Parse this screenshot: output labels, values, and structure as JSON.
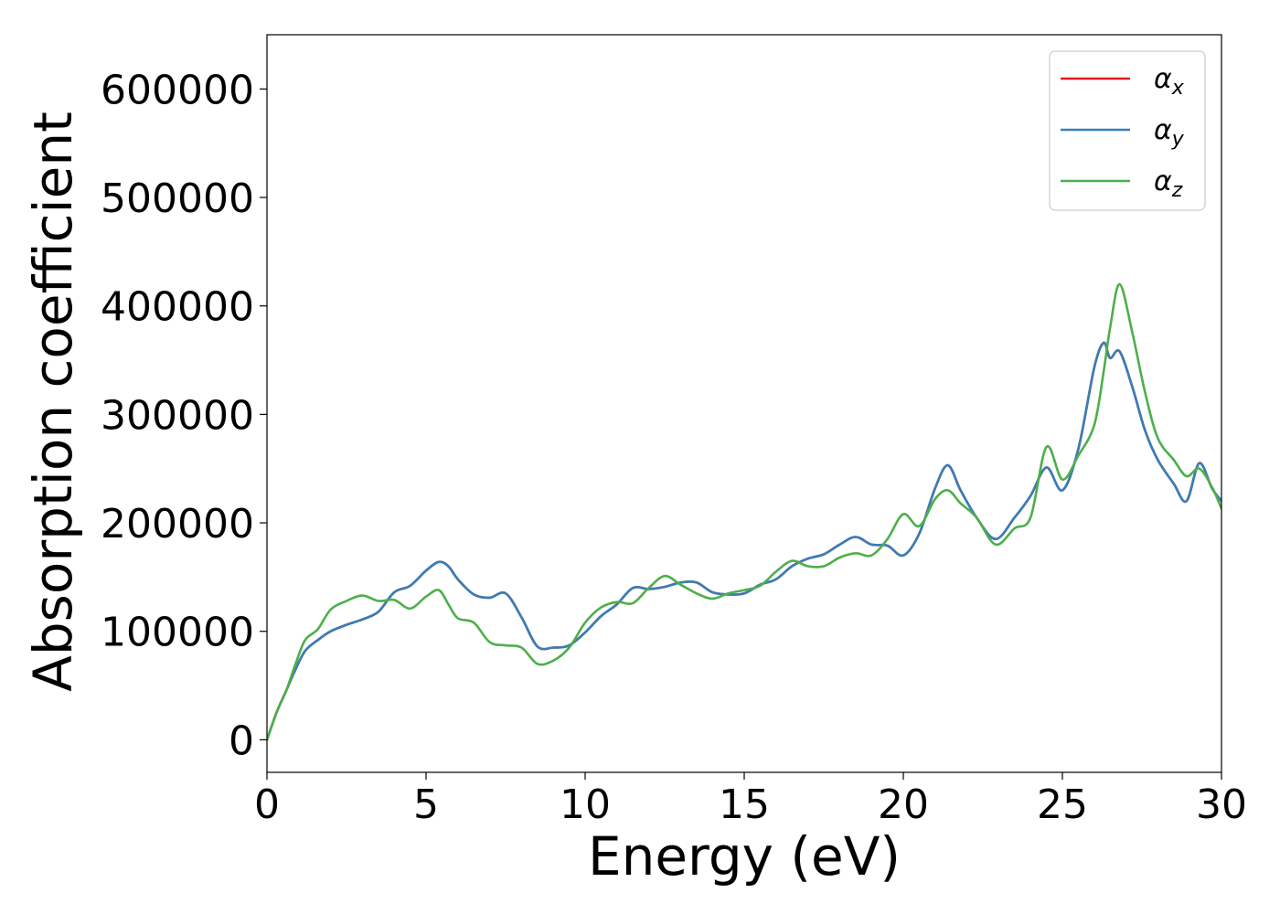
{
  "chart_data": {
    "type": "line",
    "title": "",
    "xlabel": "Energy (eV)",
    "ylabel": "Absorption coefficient",
    "xlim": [
      0,
      30
    ],
    "ylim": [
      -30000,
      650000
    ],
    "xticks": [
      0,
      5,
      10,
      15,
      20,
      25,
      30
    ],
    "yticks": [
      0,
      100000,
      200000,
      300000,
      400000,
      500000,
      600000
    ],
    "grid": false,
    "legend_position": "top-right",
    "series": [
      {
        "name": "α",
        "subscript": "x",
        "color": "#e41a1c",
        "x": [
          0,
          0.3,
          0.6,
          0.9,
          1.2,
          1.6,
          2.0,
          2.5,
          3.0,
          3.5,
          4.0,
          4.5,
          5.0,
          5.4,
          5.7,
          6.0,
          6.5,
          7.0,
          7.5,
          8.0,
          8.5,
          9.0,
          9.5,
          10.0,
          10.5,
          11.0,
          11.5,
          12.0,
          12.5,
          13.0,
          13.5,
          14.0,
          14.5,
          15.0,
          15.5,
          16.0,
          16.5,
          17.0,
          17.5,
          18.0,
          18.5,
          19.0,
          19.5,
          20.0,
          20.5,
          21.0,
          21.4,
          21.8,
          22.3,
          22.9,
          23.5,
          24.0,
          24.5,
          25.0,
          25.5,
          26.0,
          26.3,
          26.5,
          26.8,
          27.2,
          27.6,
          28.0,
          28.5,
          28.9,
          29.3,
          29.7,
          30.0
        ],
        "values": [
          0,
          25000,
          45000,
          65000,
          82000,
          92000,
          100000,
          106000,
          111000,
          118000,
          136000,
          142000,
          156000,
          164000,
          160000,
          148000,
          134000,
          131000,
          135000,
          113000,
          86000,
          85000,
          87000,
          99000,
          114000,
          125000,
          140000,
          139000,
          141000,
          145000,
          145000,
          136000,
          134000,
          135000,
          143000,
          148000,
          160000,
          167000,
          171000,
          180000,
          187000,
          180000,
          179000,
          170000,
          190000,
          232000,
          253000,
          230000,
          205000,
          185000,
          205000,
          225000,
          251000,
          230000,
          268000,
          343000,
          366000,
          352000,
          358000,
          325000,
          285000,
          258000,
          236000,
          220000,
          255000,
          232000,
          220000
        ]
      },
      {
        "name": "α",
        "subscript": "y",
        "color": "#377eb8",
        "x": [
          0,
          0.3,
          0.6,
          0.9,
          1.2,
          1.6,
          2.0,
          2.5,
          3.0,
          3.5,
          4.0,
          4.5,
          5.0,
          5.4,
          5.7,
          6.0,
          6.5,
          7.0,
          7.5,
          8.0,
          8.5,
          9.0,
          9.5,
          10.0,
          10.5,
          11.0,
          11.5,
          12.0,
          12.5,
          13.0,
          13.5,
          14.0,
          14.5,
          15.0,
          15.5,
          16.0,
          16.5,
          17.0,
          17.5,
          18.0,
          18.5,
          19.0,
          19.5,
          20.0,
          20.5,
          21.0,
          21.4,
          21.8,
          22.3,
          22.9,
          23.5,
          24.0,
          24.5,
          25.0,
          25.5,
          26.0,
          26.3,
          26.5,
          26.8,
          27.2,
          27.6,
          28.0,
          28.5,
          28.9,
          29.3,
          29.7,
          30.0
        ],
        "values": [
          0,
          25000,
          45000,
          65000,
          82000,
          92000,
          100000,
          106000,
          111000,
          118000,
          136000,
          142000,
          156000,
          164000,
          160000,
          148000,
          134000,
          131000,
          135000,
          113000,
          86000,
          85000,
          87000,
          99000,
          114000,
          125000,
          140000,
          139000,
          141000,
          145000,
          145000,
          136000,
          134000,
          135000,
          143000,
          148000,
          160000,
          167000,
          171000,
          180000,
          187000,
          180000,
          179000,
          170000,
          190000,
          232000,
          253000,
          230000,
          205000,
          185000,
          205000,
          225000,
          251000,
          230000,
          268000,
          343000,
          366000,
          352000,
          358000,
          325000,
          285000,
          258000,
          236000,
          220000,
          255000,
          232000,
          220000
        ]
      },
      {
        "name": "α",
        "subscript": "z",
        "color": "#4daf4a",
        "x": [
          0,
          0.3,
          0.6,
          0.9,
          1.2,
          1.6,
          2.0,
          2.5,
          3.0,
          3.5,
          4.0,
          4.5,
          5.0,
          5.4,
          5.7,
          6.0,
          6.5,
          7.0,
          7.5,
          8.0,
          8.5,
          9.0,
          9.5,
          10.0,
          10.5,
          11.0,
          11.5,
          12.0,
          12.5,
          13.0,
          13.5,
          14.0,
          14.5,
          15.0,
          15.5,
          16.0,
          16.5,
          17.0,
          17.5,
          18.0,
          18.5,
          19.0,
          19.5,
          20.0,
          20.5,
          21.0,
          21.4,
          21.8,
          22.3,
          22.9,
          23.5,
          24.0,
          24.5,
          25.0,
          25.5,
          26.0,
          26.3,
          26.5,
          26.8,
          27.2,
          27.6,
          28.0,
          28.5,
          28.9,
          29.3,
          29.7,
          30.0
        ],
        "values": [
          0,
          25000,
          45000,
          70000,
          92000,
          102000,
          120000,
          128000,
          133000,
          128000,
          129000,
          121000,
          132000,
          138000,
          125000,
          112000,
          108000,
          90000,
          87000,
          85000,
          70000,
          73000,
          85000,
          108000,
          122000,
          127000,
          126000,
          140000,
          151000,
          143000,
          135000,
          130000,
          135000,
          138000,
          142000,
          155000,
          165000,
          160000,
          160000,
          168000,
          172000,
          170000,
          185000,
          208000,
          197000,
          222000,
          230000,
          218000,
          205000,
          180000,
          195000,
          205000,
          270000,
          240000,
          262000,
          290000,
          340000,
          380000,
          420000,
          375000,
          320000,
          278000,
          258000,
          243000,
          250000,
          233000,
          213000
        ]
      }
    ]
  }
}
